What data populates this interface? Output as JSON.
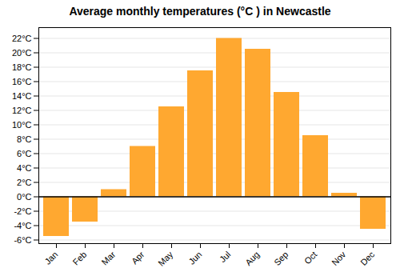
{
  "chart_data": {
    "type": "bar",
    "title": "Average monthly temperatures (°C ) in Newcastle",
    "categories": [
      "Jan",
      "Feb",
      "Mar",
      "Apr",
      "May",
      "Jun",
      "Jul",
      "Aug",
      "Sep",
      "Oct",
      "Nov",
      "Dec"
    ],
    "values": [
      -5.5,
      -3.5,
      1.0,
      7.0,
      12.5,
      17.5,
      22.0,
      20.5,
      14.5,
      8.5,
      0.5,
      -4.5
    ],
    "color": "#FFA830",
    "ylim": [
      -6.5,
      23.5
    ],
    "yticks": [
      {
        "value": -6,
        "label": "-6°C"
      },
      {
        "value": -4,
        "label": "-4°C"
      },
      {
        "value": -2,
        "label": "-2°C"
      },
      {
        "value": 0,
        "label": "0°C"
      },
      {
        "value": 2,
        "label": "2°C"
      },
      {
        "value": 4,
        "label": "4°C"
      },
      {
        "value": 6,
        "label": "6°C"
      },
      {
        "value": 8,
        "label": "8°C"
      },
      {
        "value": 10,
        "label": "10°C"
      },
      {
        "value": 12,
        "label": "12°C"
      },
      {
        "value": 14,
        "label": "14°C"
      },
      {
        "value": 16,
        "label": "16°C"
      },
      {
        "value": 18,
        "label": "18°C"
      },
      {
        "value": 20,
        "label": "20°C"
      },
      {
        "value": 22,
        "label": "22°C"
      }
    ],
    "grid": true
  }
}
